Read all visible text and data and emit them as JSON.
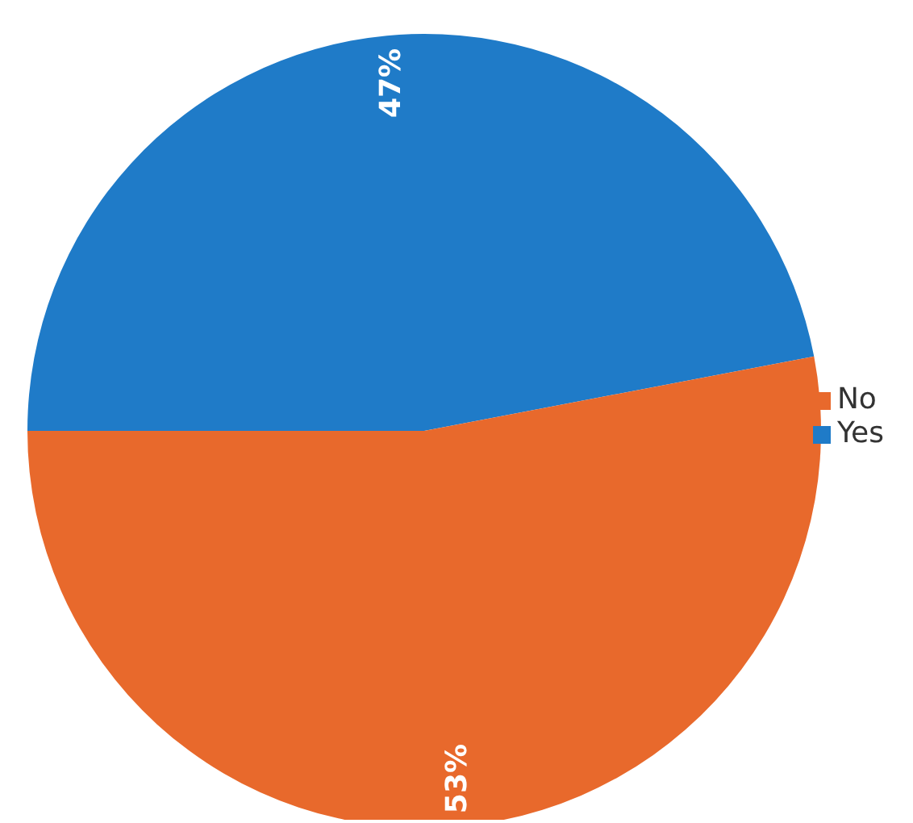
{
  "chart_data": {
    "type": "pie",
    "categories": [
      "Yes",
      "No"
    ],
    "values": [
      47,
      53
    ],
    "colors": [
      "#1f7bc8",
      "#e8692c"
    ],
    "value_labels": [
      "47%",
      "53%"
    ],
    "legend": "right"
  }
}
